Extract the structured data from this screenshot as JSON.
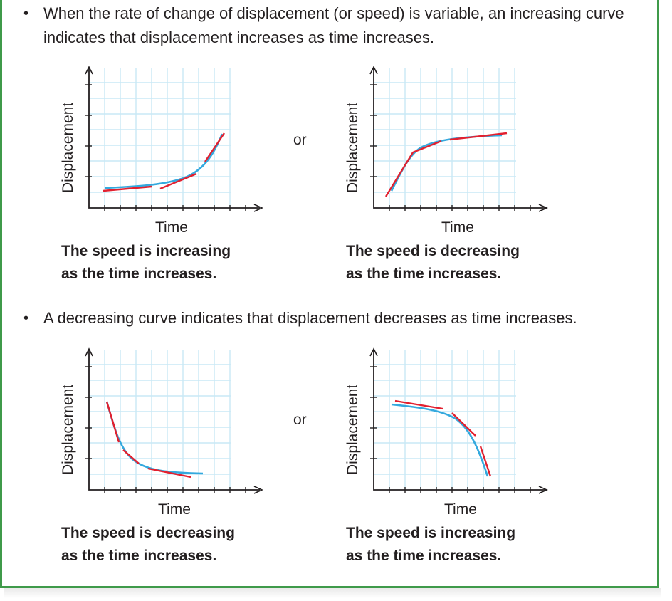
{
  "bullets": [
    {
      "text": "When the rate of change of displacement (or speed) is variable, an increasing curve indicates that displacement increases as time increases."
    },
    {
      "text": "A decreasing curve indicates that displacement decreases as time increases."
    }
  ],
  "separator": "or",
  "graphs": [
    {
      "ylabel": "Displacement",
      "xlabel": "Time",
      "caption_line1": "The speed is increasing",
      "caption_line2": "as the time increases."
    },
    {
      "ylabel": "Displacement",
      "xlabel": "Time",
      "caption_line1": "The speed is decreasing",
      "caption_line2": "as the time increases."
    },
    {
      "ylabel": "Displacement",
      "xlabel": "Time",
      "caption_line1": "The speed is decreasing",
      "caption_line2": "as the time increases."
    },
    {
      "ylabel": "Displacement",
      "xlabel": "Time",
      "caption_line1": "The speed is increasing",
      "caption_line2": "as the time increases."
    }
  ],
  "colors": {
    "border": "#3f9a4a",
    "grid": "#c9e8f6",
    "curve": "#34a9de",
    "tangent": "#e2202f",
    "axis": "#231f20"
  }
}
